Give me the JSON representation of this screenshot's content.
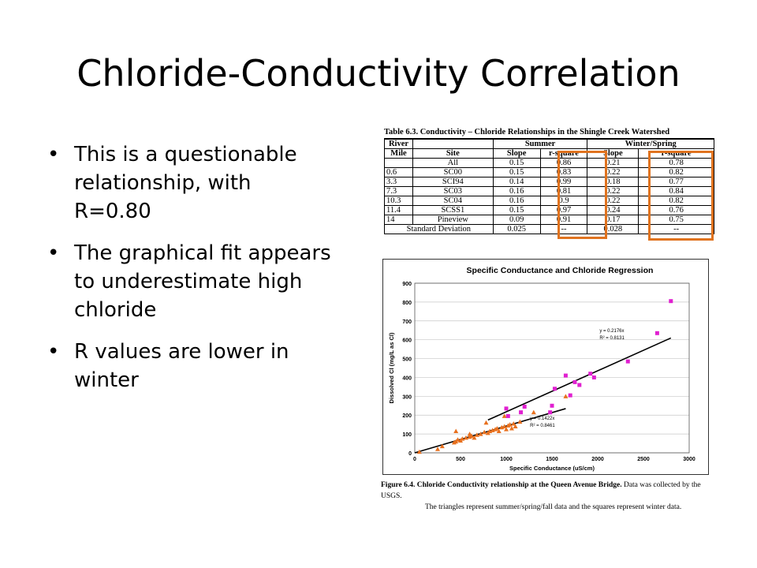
{
  "slide": {
    "title": "Chloride-Conductivity Correlation",
    "bullets": [
      "This is a questionable relationship, with R=0.80",
      "The graphical fit appears to underestimate high chloride",
      "R values are lower in winter"
    ]
  },
  "table": {
    "caption": "Table 6.3.  Conductivity – Chloride Relationships in the Shingle Creek Watershed",
    "header1": [
      "River",
      "",
      "Summer",
      "Winter/Spring"
    ],
    "header2": [
      "Mile",
      "Site",
      "Slope",
      "r-square",
      "Slope",
      "r-square"
    ],
    "rows": [
      [
        "",
        "All",
        "0.15",
        "0.86",
        "0.21",
        "0.78"
      ],
      [
        "0.6",
        "SC00",
        "0.15",
        "0.83",
        "0.22",
        "0.82"
      ],
      [
        "3.3",
        "SCI94",
        "0.14",
        "0.99",
        "0.18",
        "0.77"
      ],
      [
        "7.3",
        "SC03",
        "0.16",
        "0.81",
        "0.22",
        "0.84"
      ],
      [
        "10.3",
        "SC04",
        "0.16",
        "0.9",
        "0.22",
        "0.82"
      ],
      [
        "11.4",
        "SCSS1",
        "0.15",
        "0.97",
        "0.24",
        "0.76"
      ],
      [
        "14",
        "Pineview",
        "0.09",
        "0.91",
        "0.17",
        "0.75"
      ]
    ],
    "footer": [
      "Standard Deviation",
      "0.025",
      "--",
      "0.028",
      "--"
    ],
    "highlight_color": "#e0731f"
  },
  "chart_data": {
    "type": "scatter",
    "title": "Specific Conductance and Chloride Regression",
    "xlabel": "Specific Conductance (uS/cm)",
    "ylabel": "Dissolved Cl (mg/L as Cl)",
    "xlim": [
      0,
      3000
    ],
    "ylim": [
      0,
      900
    ],
    "xticks": [
      0,
      500,
      1000,
      1500,
      2000,
      2500,
      3000
    ],
    "yticks": [
      0,
      100,
      200,
      300,
      400,
      500,
      600,
      700,
      800,
      900
    ],
    "xtick_labels": [
      "0",
      "500",
      "1000",
      "1500",
      "2000",
      "2500",
      "3000"
    ],
    "ytick_labels": [
      "0",
      "100",
      "200",
      "300",
      "400",
      "500",
      "600",
      "700",
      "800",
      "900"
    ],
    "grid": true,
    "series": [
      {
        "marker": "triangle",
        "color": "#e8701e",
        "x": [
          50,
          250,
          300,
          430,
          450,
          470,
          500,
          520,
          560,
          600,
          620,
          650,
          680,
          720,
          760,
          800,
          820,
          850,
          880,
          900,
          920,
          950,
          980,
          1000,
          1020,
          1040,
          1060,
          1080,
          1100,
          450,
          600,
          780,
          980,
          1150,
          1300,
          1650
        ],
        "y": [
          5,
          20,
          35,
          55,
          60,
          70,
          65,
          75,
          80,
          85,
          90,
          80,
          95,
          100,
          110,
          105,
          115,
          120,
          125,
          130,
          115,
          135,
          140,
          125,
          145,
          150,
          130,
          155,
          140,
          115,
          100,
          160,
          195,
          165,
          215,
          300
        ]
      },
      {
        "marker": "square",
        "color": "#e020d0",
        "x": [
          1000,
          1020,
          1160,
          1200,
          1480,
          1500,
          1530,
          1650,
          1700,
          1750,
          1800,
          1920,
          1960,
          2330,
          2650,
          2800
        ],
        "y": [
          235,
          195,
          215,
          245,
          215,
          250,
          340,
          410,
          305,
          375,
          360,
          420,
          400,
          485,
          635,
          805
        ]
      }
    ],
    "fits": [
      {
        "slope": 0.2176,
        "x_range": [
          800,
          2800
        ],
        "color": "#000000",
        "label_eq": "y = 0.2176x",
        "label_r2": "R² = 0.8131"
      },
      {
        "slope": 0.1422,
        "x_range": [
          0,
          1650
        ],
        "color": "#000000",
        "label_eq": "y = 0.1422x",
        "label_r2": "R² = 0.8461"
      }
    ]
  },
  "figure": {
    "caption_bold": "Figure 6.4.  Chloride Conductivity relationship at the Queen Avenue Bridge.",
    "caption_rest": "  Data was collected by the USGS.",
    "caption_line2": "The triangles represent summer/spring/fall data and the squares represent winter data."
  }
}
